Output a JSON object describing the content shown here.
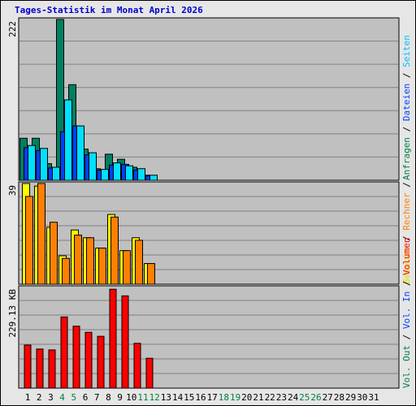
{
  "page": {
    "title": "Tages-Statistik im Monat April 2026"
  },
  "legend": {
    "top": [
      {
        "text": "Anfragen",
        "color": "#008040"
      },
      {
        "text": " / ",
        "color": "#000000"
      },
      {
        "text": "Dateien",
        "color": "#0040ff"
      },
      {
        "text": " / ",
        "color": "#000000"
      },
      {
        "text": "Seiten",
        "color": "#00c0ff"
      }
    ],
    "mid": [
      {
        "text": "Besuche",
        "color": "#e0e000"
      },
      {
        "text": " / ",
        "color": "#000000"
      },
      {
        "text": "Rechner",
        "color": "#ff8000"
      },
      {
        "text": " / ",
        "color": "#000000"
      }
    ],
    "bottom": [
      {
        "text": "Vol. Out",
        "color": "#008040"
      },
      {
        "text": " / ",
        "color": "#000000"
      },
      {
        "text": "Vol. In",
        "color": "#0040ff"
      },
      {
        "text": " / ",
        "color": "#000000"
      },
      {
        "text": "Volumen",
        "color": "#ff0000"
      }
    ]
  },
  "chart_data": {
    "type": "bar",
    "title": "Tages-Statistik im Monat April 2026",
    "x_ticks": [
      "1",
      "2",
      "3",
      "4",
      "5",
      "6",
      "7",
      "8",
      "9",
      "10",
      "11",
      "12",
      "13",
      "14",
      "15",
      "16",
      "17",
      "18",
      "19",
      "20",
      "21",
      "22",
      "23",
      "24",
      "25",
      "26",
      "27",
      "28",
      "29",
      "30",
      "31"
    ],
    "x_tick_colors": {
      "4": "#008040",
      "5": "#008040",
      "11": "#008040",
      "12": "#008040",
      "18": "#008040",
      "19": "#008040",
      "25": "#008040",
      "26": "#008040"
    },
    "panels": [
      {
        "name": "top",
        "ymax_label": "222",
        "ymax": 222,
        "series": [
          {
            "name": "Anfragen",
            "color": "#008060",
            "values": [
              58,
              58,
              23,
              222,
              132,
              43,
              16,
              36,
              29,
              18,
              7
            ]
          },
          {
            "name": "Dateien",
            "color": "#0040ff",
            "values": [
              45,
              41,
              17,
              67,
              75,
              35,
              14,
              21,
              22,
              14,
              6
            ]
          },
          {
            "name": "Seiten",
            "color": "#00e0ff",
            "values": [
              48,
              44,
              18,
              111,
              75,
              38,
              15,
              24,
              20,
              16,
              7
            ]
          }
        ]
      },
      {
        "name": "mid",
        "ymax_label": "39",
        "ymax": 39,
        "series": [
          {
            "name": "Besuche",
            "color": "#ffff00",
            "values": [
              39,
              38,
              22,
              11,
              21,
              18,
              14,
              27,
              13,
              18,
              8
            ]
          },
          {
            "name": "Rechner",
            "color": "#ff8000",
            "values": [
              34,
              39,
              24,
              10,
              19,
              18,
              14,
              26,
              13,
              17,
              8
            ]
          }
        ]
      },
      {
        "name": "bottom",
        "ymax_label": "229.13 KB",
        "ymax": 229.13,
        "series": [
          {
            "name": "Volumen",
            "color": "#ff0000",
            "values": [
              98,
              89,
              87,
              162,
              141,
              127,
              118,
              225,
              210,
              102,
              68
            ]
          }
        ]
      }
    ]
  }
}
